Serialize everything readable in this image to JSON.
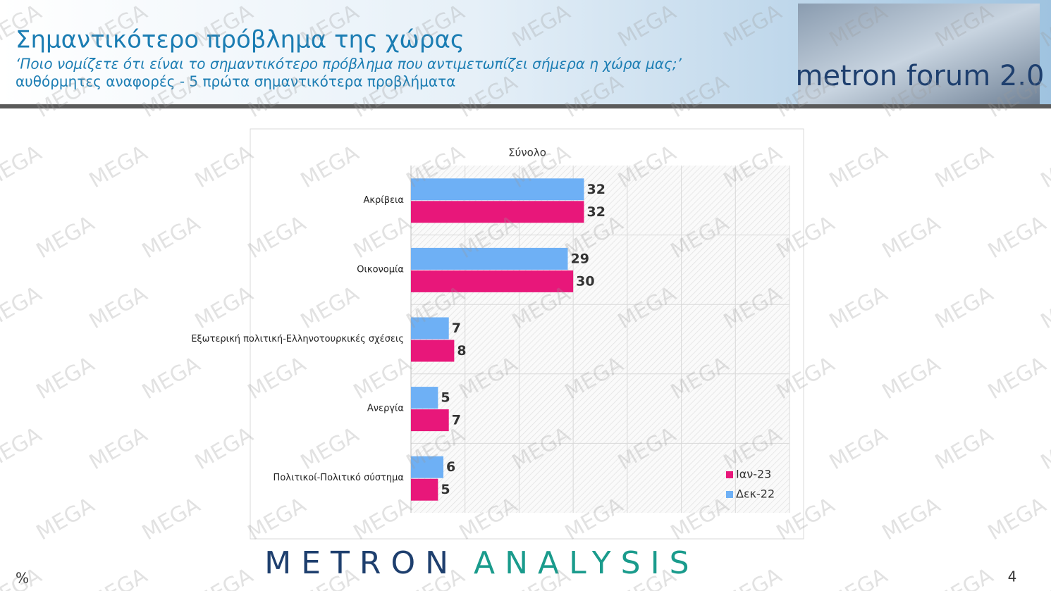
{
  "header": {
    "title": "Σημαντικότερο πρόβλημα της χώρας",
    "subtitle": "‘Ποιο νομίζετε ότι  είναι το σημαντικότερο πρόβλημα που αντιμετωπίζει σήμερα η χώρα μας;’",
    "note": "αυθόρμητες αναφορές - 5 πρώτα σημαντικότερα προβλήματα"
  },
  "logo": "metron forum 2.0",
  "watermark": "MEGA",
  "chart_data": {
    "type": "hbar",
    "title": "Σύνολο",
    "categories": [
      "Ακρίβεια",
      "Οικονομία",
      "Εξωτερική πολιτική-Ελληνοτουρκικές σχέσεις",
      "Ανεργία",
      "Πολιτικοί-Πολιτικό σύστημα"
    ],
    "series": [
      {
        "name": "Ιαν-23",
        "color": "#e8177a",
        "values": [
          32,
          30,
          8,
          7,
          5
        ]
      },
      {
        "name": "Δεκ-22",
        "color": "#6eb0f5",
        "values": [
          32,
          29,
          7,
          5,
          6
        ]
      }
    ],
    "xlim": [
      0,
      70
    ],
    "xticks": [
      0,
      10,
      20,
      30,
      40,
      50,
      60,
      70
    ],
    "grid": true,
    "legend": "lower right"
  },
  "footer": {
    "unit": "%",
    "brand_left": "METRON",
    "brand_right": "ANALYSIS",
    "page": "4"
  }
}
